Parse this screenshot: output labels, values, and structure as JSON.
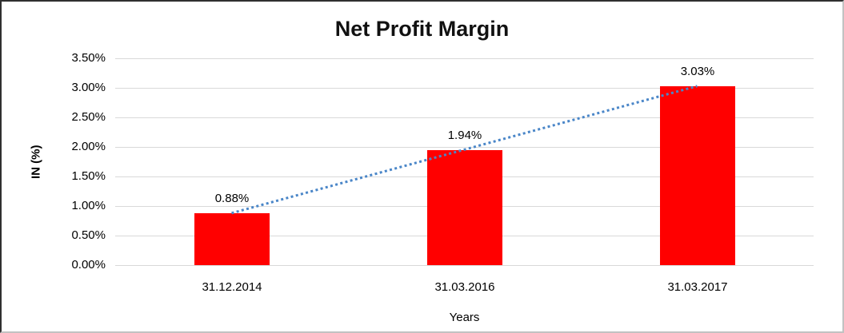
{
  "chart_data": {
    "type": "bar",
    "title": "Net Profit Margin",
    "categories": [
      "31.12.2014",
      "31.03.2016",
      "31.03.2017"
    ],
    "series": [
      {
        "name": "Net Profit Margin",
        "values": [
          0.88,
          1.94,
          3.03
        ],
        "color": "#ff0000"
      }
    ],
    "data_labels": [
      "0.88%",
      "1.94%",
      "3.03%"
    ],
    "xlabel": "Years",
    "ylabel": "IN (%)",
    "ylim": [
      0,
      3.5
    ],
    "ytick_step": 0.5,
    "ytick_labels": [
      "0.00%",
      "0.50%",
      "1.00%",
      "1.50%",
      "2.00%",
      "2.50%",
      "3.00%",
      "3.50%"
    ],
    "grid": true,
    "legend": "none",
    "trendline": {
      "type": "linear",
      "style": "dotted",
      "color": "#4a86c8",
      "from_point": {
        "category_index": 0,
        "value": 0.88
      },
      "to_point": {
        "category_index": 2,
        "value": 3.03
      }
    },
    "colors": {
      "bar": "#ff0000",
      "trendline": "#4a86c8",
      "gridline": "#d9d9d9",
      "text": "#000000",
      "title": "#111111"
    }
  }
}
